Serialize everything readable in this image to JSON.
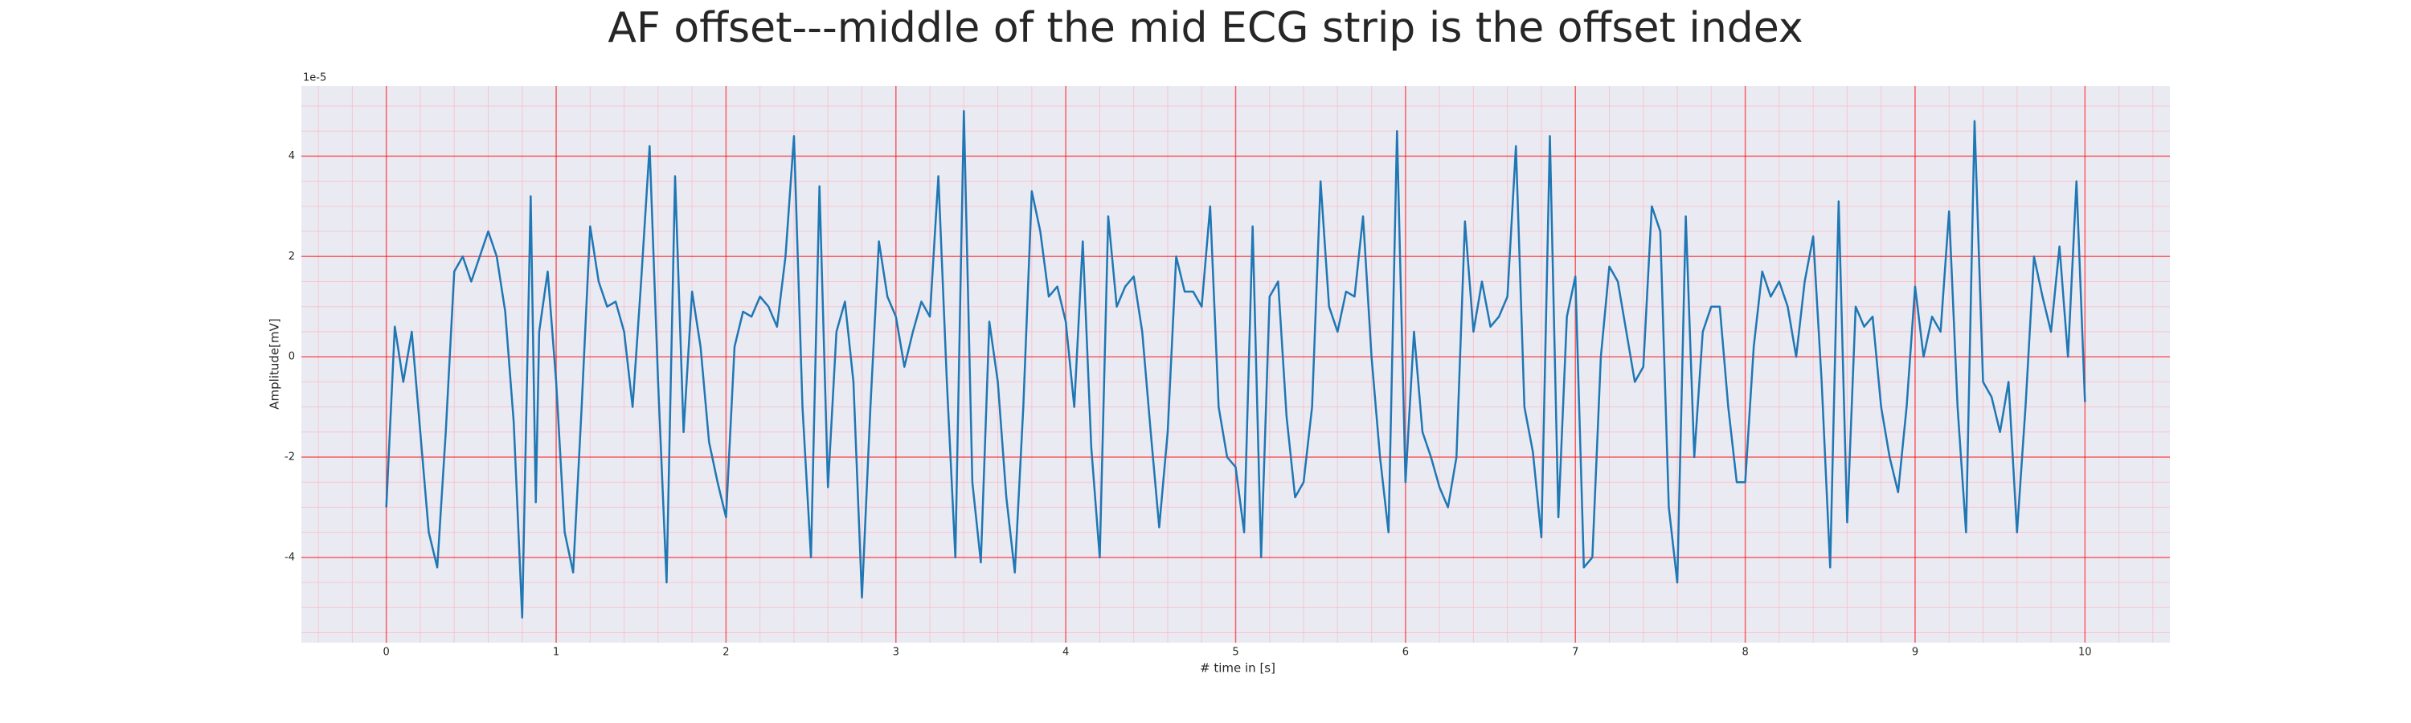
{
  "chart_data": {
    "type": "line",
    "title": "AF offset---middle of the mid ECG strip is the offset index",
    "x_label": "# time in [s]",
    "y_label": "Amplitude[mV]",
    "y_offset_label": "1e-5",
    "color": "#1f77b4",
    "grid": true,
    "grid_color": "#ff0000",
    "minor_grid_color": "#ffb6c1",
    "background": "#eaeaf2",
    "xlim": [
      -0.5,
      10.5
    ],
    "ylim": [
      -5.7,
      5.4
    ],
    "xticks": [
      0,
      1,
      2,
      3,
      4,
      5,
      6,
      7,
      8,
      9,
      10
    ],
    "yticks": [
      -4,
      -2,
      0,
      2,
      4
    ],
    "xminorticks": [
      -0.4,
      -0.2,
      0.2,
      0.4,
      0.6,
      0.8,
      1.2,
      1.4,
      1.6,
      1.8,
      2.2,
      2.4,
      2.6,
      2.8,
      3.2,
      3.4,
      3.6,
      3.8,
      4.2,
      4.4,
      4.6,
      4.8,
      5.2,
      5.4,
      5.6,
      5.8,
      6.2,
      6.4,
      6.6,
      6.8,
      7.2,
      7.4,
      7.6,
      7.8,
      8.2,
      8.4,
      8.6,
      8.8,
      9.2,
      9.4,
      9.6,
      9.8,
      10.2,
      10.4
    ],
    "yminorticks": [
      -5.5,
      -5,
      -4.5,
      -3.5,
      -3,
      -2.5,
      -1.5,
      -1,
      -0.5,
      0.5,
      1,
      1.5,
      2.5,
      3,
      3.5,
      4.5,
      5
    ],
    "x": [
      0,
      0.05,
      0.1,
      0.15,
      0.2,
      0.25,
      0.3,
      0.35,
      0.4,
      0.45,
      0.5,
      0.55,
      0.6,
      0.65,
      0.7,
      0.75,
      0.8,
      0.85,
      0.88,
      0.9,
      0.95,
      1,
      1.05,
      1.1,
      1.15,
      1.2,
      1.25,
      1.3,
      1.35,
      1.4,
      1.45,
      1.5,
      1.55,
      1.6,
      1.65,
      1.7,
      1.75,
      1.8,
      1.85,
      1.9,
      1.95,
      2,
      2.05,
      2.1,
      2.15,
      2.2,
      2.25,
      2.3,
      2.35,
      2.4,
      2.45,
      2.5,
      2.55,
      2.6,
      2.65,
      2.7,
      2.75,
      2.8,
      2.85,
      2.9,
      2.95,
      3,
      3.05,
      3.1,
      3.15,
      3.2,
      3.25,
      3.3,
      3.35,
      3.4,
      3.45,
      3.5,
      3.55,
      3.6,
      3.65,
      3.7,
      3.75,
      3.8,
      3.85,
      3.9,
      3.95,
      4,
      4.05,
      4.1,
      4.15,
      4.2,
      4.25,
      4.3,
      4.35,
      4.4,
      4.45,
      4.5,
      4.55,
      4.6,
      4.65,
      4.7,
      4.75,
      4.8,
      4.85,
      4.9,
      4.95,
      5,
      5.05,
      5.1,
      5.15,
      5.2,
      5.25,
      5.3,
      5.35,
      5.4,
      5.45,
      5.5,
      5.55,
      5.6,
      5.65,
      5.7,
      5.75,
      5.8,
      5.85,
      5.9,
      5.95,
      6,
      6.05,
      6.1,
      6.15,
      6.2,
      6.25,
      6.3,
      6.35,
      6.4,
      6.45,
      6.5,
      6.55,
      6.6,
      6.65,
      6.7,
      6.75,
      6.8,
      6.85,
      6.9,
      6.95,
      7,
      7.05,
      7.1,
      7.15,
      7.2,
      7.25,
      7.3,
      7.35,
      7.4,
      7.45,
      7.5,
      7.55,
      7.6,
      7.65,
      7.7,
      7.75,
      7.8,
      7.85,
      7.9,
      7.95,
      8,
      8.05,
      8.1,
      8.15,
      8.2,
      8.25,
      8.3,
      8.35,
      8.4,
      8.45,
      8.5,
      8.55,
      8.6,
      8.65,
      8.7,
      8.75,
      8.8,
      8.85,
      8.9,
      8.95,
      9,
      9.05,
      9.1,
      9.15,
      9.2,
      9.25,
      9.3,
      9.35,
      9.4,
      9.45,
      9.5,
      9.55,
      9.6,
      9.65,
      9.7,
      9.75,
      9.8,
      9.85,
      9.9,
      9.95,
      10
    ],
    "values": [
      -3.0,
      0.6,
      -0.5,
      0.5,
      -1.5,
      -3.5,
      -4.2,
      -1.5,
      1.7,
      2.0,
      1.5,
      2.0,
      2.5,
      2.0,
      0.9,
      -1.3,
      -5.2,
      3.2,
      -2.9,
      0.5,
      1.7,
      -0.5,
      -3.5,
      -4.3,
      -1.0,
      2.6,
      1.5,
      1.0,
      1.1,
      0.5,
      -1.0,
      1.5,
      4.2,
      -0.5,
      -4.5,
      3.6,
      -1.5,
      1.3,
      0.2,
      -1.7,
      -2.5,
      -3.2,
      0.2,
      0.9,
      0.8,
      1.2,
      1.0,
      0.6,
      2.0,
      4.4,
      -1.0,
      -4.0,
      3.4,
      -2.6,
      0.5,
      1.1,
      -0.5,
      -4.8,
      -1.0,
      2.3,
      1.2,
      0.8,
      -0.2,
      0.5,
      1.1,
      0.8,
      3.6,
      -0.5,
      -4.0,
      4.9,
      -2.5,
      -4.1,
      0.7,
      -0.5,
      -2.8,
      -4.3,
      -1.0,
      3.3,
      2.5,
      1.2,
      1.4,
      0.7,
      -1.0,
      2.3,
      -1.8,
      -4.0,
      2.8,
      1.0,
      1.4,
      1.6,
      0.5,
      -1.5,
      -3.4,
      -1.5,
      2.0,
      1.3,
      1.3,
      1.0,
      3.0,
      -1.0,
      -2.0,
      -2.2,
      -3.5,
      2.6,
      -4.0,
      1.2,
      1.5,
      -1.2,
      -2.8,
      -2.5,
      -1.0,
      3.5,
      1.0,
      0.5,
      1.3,
      1.2,
      2.8,
      0.0,
      -2.0,
      -3.5,
      4.5,
      -2.5,
      0.5,
      -1.5,
      -2.0,
      -2.6,
      -3.0,
      -2.0,
      2.7,
      0.5,
      1.5,
      0.6,
      0.8,
      1.2,
      4.2,
      -1.0,
      -1.9,
      -3.6,
      4.4,
      -3.2,
      0.8,
      1.6,
      -4.2,
      -4.0,
      0.0,
      1.8,
      1.5,
      0.5,
      -0.5,
      -0.2,
      3.0,
      2.5,
      -3.0,
      -4.5,
      2.8,
      -2.0,
      0.5,
      1.0,
      1.0,
      -1.0,
      -2.5,
      -2.5,
      0.2,
      1.7,
      1.2,
      1.5,
      1.0,
      0.0,
      1.5,
      2.4,
      -0.5,
      -4.2,
      3.1,
      -3.3,
      1.0,
      0.6,
      0.8,
      -1.0,
      -2.0,
      -2.7,
      -1.0,
      1.4,
      0.0,
      0.8,
      0.5,
      2.9,
      -1.0,
      -3.5,
      4.7,
      -0.5,
      -0.8,
      -1.5,
      -0.5,
      -3.5,
      -1.0,
      2.0,
      1.2,
      0.5,
      2.2,
      0.0,
      3.5,
      -0.9
    ]
  }
}
